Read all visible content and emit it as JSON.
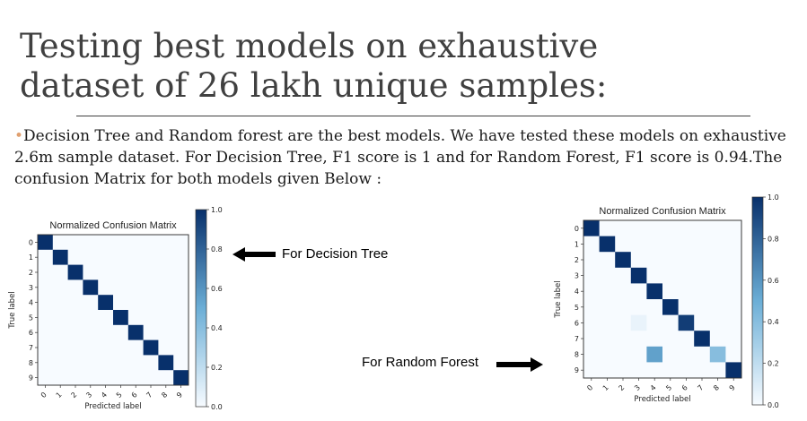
{
  "slide": {
    "title_line1": "Testing best models on exhaustive",
    "title_line2": "dataset of 26 lakh unique samples:",
    "bullet": "•",
    "body": "Decision Tree and Random forest are the best models. We have tested these models on exhaustive 2.6m sample dataset. For Decision Tree, F1 score is 1 and for Random Forest, F1 score is 0.94.The confusion Matrix for both models given Below :",
    "label_dt": "For Decision Tree",
    "label_rf": "For Random Forest"
  },
  "chart_data": [
    {
      "type": "heatmap",
      "title": "Normalized Confusion Matrix",
      "xlabel": "Predicted label",
      "ylabel": "True label",
      "x_ticks": [
        "0",
        "1",
        "2",
        "3",
        "4",
        "5",
        "6",
        "7",
        "8",
        "9"
      ],
      "y_ticks": [
        "0",
        "1",
        "2",
        "3",
        "4",
        "5",
        "6",
        "7",
        "8",
        "9"
      ],
      "colorbar_ticks": [
        "0.0",
        "0.2",
        "0.4",
        "0.6",
        "0.8",
        "1.0"
      ],
      "colorbar_range": [
        0,
        1
      ],
      "colormap": "Blues",
      "cells": [
        {
          "row": 0,
          "col": 0,
          "value": 1.0
        },
        {
          "row": 1,
          "col": 1,
          "value": 1.0
        },
        {
          "row": 2,
          "col": 2,
          "value": 1.0
        },
        {
          "row": 3,
          "col": 3,
          "value": 1.0
        },
        {
          "row": 4,
          "col": 4,
          "value": 1.0
        },
        {
          "row": 5,
          "col": 5,
          "value": 1.0
        },
        {
          "row": 6,
          "col": 6,
          "value": 1.0
        },
        {
          "row": 7,
          "col": 7,
          "value": 1.0
        },
        {
          "row": 8,
          "col": 8,
          "value": 1.0
        },
        {
          "row": 9,
          "col": 9,
          "value": 1.0
        }
      ]
    },
    {
      "type": "heatmap",
      "title": "Normalized Confusion Matrix",
      "xlabel": "Predicted label",
      "ylabel": "True label",
      "x_ticks": [
        "0",
        "1",
        "2",
        "3",
        "4",
        "5",
        "6",
        "7",
        "8",
        "9"
      ],
      "y_ticks": [
        "0",
        "1",
        "2",
        "3",
        "4",
        "5",
        "6",
        "7",
        "8",
        "9"
      ],
      "colorbar_ticks": [
        "0.0",
        "0.2",
        "0.4",
        "0.6",
        "0.8",
        "1.0"
      ],
      "colorbar_range": [
        0,
        1
      ],
      "colormap": "Blues",
      "cells": [
        {
          "row": 0,
          "col": 0,
          "value": 1.0
        },
        {
          "row": 1,
          "col": 1,
          "value": 1.0
        },
        {
          "row": 2,
          "col": 2,
          "value": 1.0
        },
        {
          "row": 3,
          "col": 3,
          "value": 1.0
        },
        {
          "row": 4,
          "col": 4,
          "value": 1.0
        },
        {
          "row": 5,
          "col": 5,
          "value": 1.0
        },
        {
          "row": 6,
          "col": 6,
          "value": 0.95
        },
        {
          "row": 6,
          "col": 3,
          "value": 0.05
        },
        {
          "row": 7,
          "col": 7,
          "value": 1.0
        },
        {
          "row": 8,
          "col": 4,
          "value": 0.55
        },
        {
          "row": 8,
          "col": 8,
          "value": 0.4
        },
        {
          "row": 9,
          "col": 9,
          "value": 1.0
        }
      ]
    }
  ],
  "colors": {
    "title": "#404040",
    "bullet": "#e0a070",
    "cmap_low": "#f7fbff",
    "cmap_high": "#08306b"
  }
}
